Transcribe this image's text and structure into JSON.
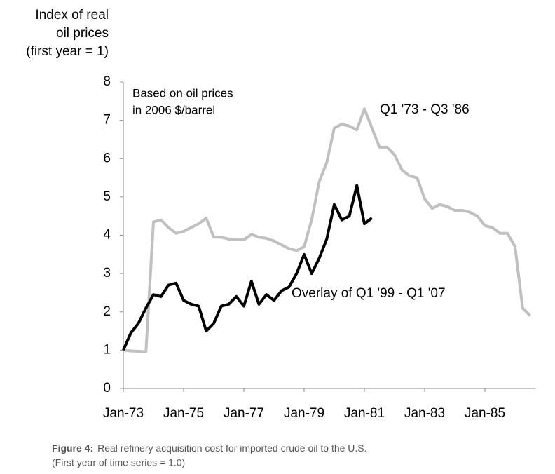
{
  "chart_data": {
    "type": "line",
    "y_label": [
      "Index of real",
      "oil prices",
      "(first year = 1)"
    ],
    "annotations": [
      "Based on oil prices",
      "in 2006 $/barrel"
    ],
    "x": [
      "Jan-73",
      "Apr-73",
      "Jul-73",
      "Oct-73",
      "Jan-74",
      "Apr-74",
      "Jul-74",
      "Oct-74",
      "Jan-75",
      "Apr-75",
      "Jul-75",
      "Oct-75",
      "Jan-76",
      "Apr-76",
      "Jul-76",
      "Oct-76",
      "Jan-77",
      "Apr-77",
      "Jul-77",
      "Oct-77",
      "Jan-78",
      "Apr-78",
      "Jul-78",
      "Oct-78",
      "Jan-79",
      "Apr-79",
      "Jul-79",
      "Oct-79",
      "Jan-80",
      "Apr-80",
      "Jul-80",
      "Oct-80",
      "Jan-81",
      "Apr-81",
      "Jul-81",
      "Oct-81",
      "Jan-82",
      "Apr-82",
      "Jul-82",
      "Oct-82",
      "Jan-83",
      "Apr-83",
      "Jul-83",
      "Oct-83",
      "Jan-84",
      "Apr-84",
      "Jul-84",
      "Oct-84",
      "Jan-85",
      "Apr-85",
      "Jul-85",
      "Oct-85",
      "Jan-86",
      "Apr-86",
      "Jul-86"
    ],
    "series": [
      {
        "name": "Q1 '73 - Q3 '86",
        "color": "#c0c0c0",
        "values": [
          1.0,
          0.98,
          0.97,
          0.96,
          4.35,
          4.4,
          4.2,
          4.05,
          4.1,
          4.2,
          4.3,
          4.45,
          3.95,
          3.95,
          3.9,
          3.88,
          3.88,
          4.02,
          3.95,
          3.92,
          3.85,
          3.75,
          3.65,
          3.6,
          3.7,
          4.4,
          5.4,
          5.9,
          6.8,
          6.9,
          6.85,
          6.75,
          7.3,
          6.8,
          6.3,
          6.3,
          6.1,
          5.7,
          5.55,
          5.5,
          4.95,
          4.7,
          4.8,
          4.75,
          4.65,
          4.65,
          4.6,
          4.5,
          4.25,
          4.2,
          4.05,
          4.05,
          3.7,
          2.1,
          1.9
        ]
      },
      {
        "name": "Overlay of Q1 '99 - Q1 '07",
        "color": "#000000",
        "values": [
          1.0,
          1.45,
          1.7,
          2.1,
          2.45,
          2.4,
          2.7,
          2.75,
          2.3,
          2.2,
          2.15,
          1.5,
          1.7,
          2.15,
          2.2,
          2.4,
          2.15,
          2.8,
          2.2,
          2.45,
          2.3,
          2.55,
          2.65,
          3.0,
          3.5,
          3.0,
          3.4,
          3.9,
          4.8,
          4.4,
          4.5,
          5.3,
          4.3,
          4.45,
          null,
          null,
          null,
          null,
          null,
          null,
          null,
          null,
          null,
          null,
          null,
          null,
          null,
          null,
          null,
          null,
          null,
          null,
          null,
          null,
          null
        ]
      }
    ],
    "xticks": [
      "Jan-73",
      "Jan-75",
      "Jan-77",
      "Jan-79",
      "Jan-81",
      "Jan-83",
      "Jan-85"
    ],
    "ylim": [
      0,
      8
    ],
    "yticks": [
      0,
      1,
      2,
      3,
      4,
      5,
      6,
      7,
      8
    ],
    "caption": {
      "label": "Figure 4:",
      "text": "Real refinery acquisition cost for imported crude oil to the U.S.",
      "note": "(First year of time series = 1.0)"
    }
  }
}
